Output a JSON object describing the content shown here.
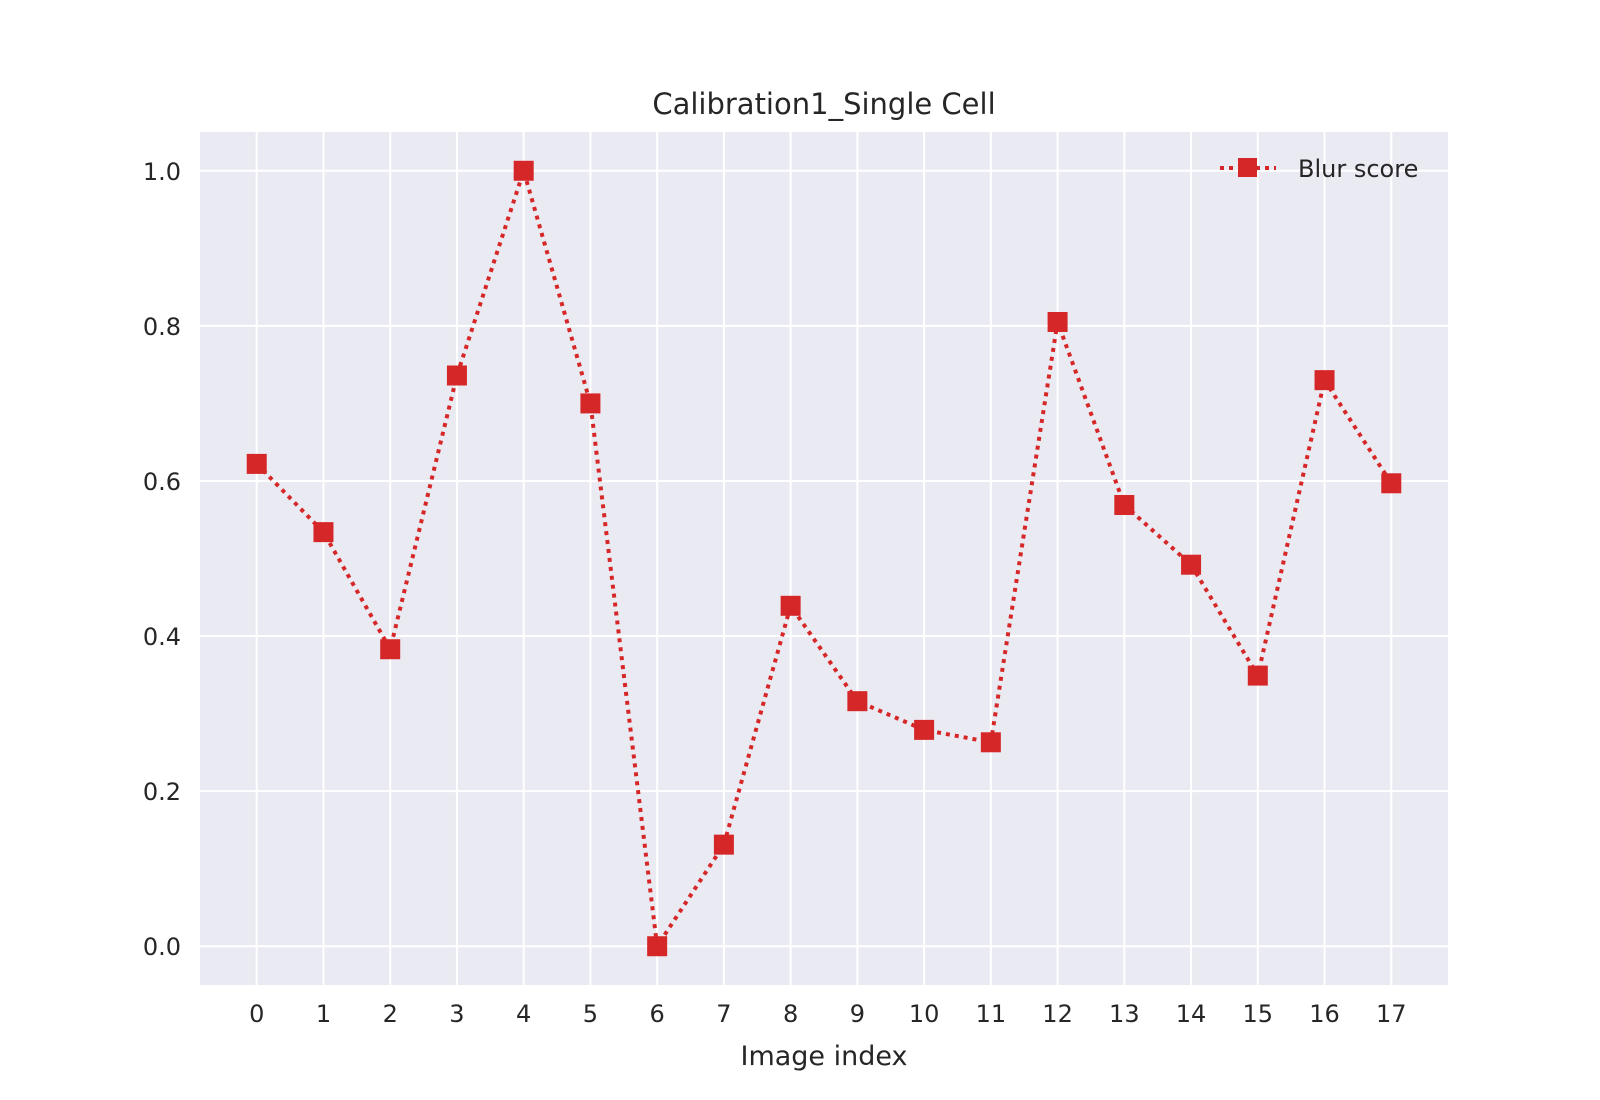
{
  "chart_data": {
    "type": "line",
    "title": "Calibration1_Single Cell",
    "xlabel": "Image index",
    "ylabel": "",
    "x": [
      0,
      1,
      2,
      3,
      4,
      5,
      6,
      7,
      8,
      9,
      10,
      11,
      12,
      13,
      14,
      15,
      16,
      17
    ],
    "x_ticks": [
      "0",
      "1",
      "2",
      "3",
      "4",
      "5",
      "6",
      "7",
      "8",
      "9",
      "10",
      "11",
      "12",
      "13",
      "14",
      "15",
      "16",
      "17"
    ],
    "y_ticks": [
      "0.0",
      "0.2",
      "0.4",
      "0.6",
      "0.8",
      "1.0"
    ],
    "xlim": [
      -0.85,
      17.85
    ],
    "ylim": [
      -0.05,
      1.05
    ],
    "grid": true,
    "legend_position": "top-right",
    "series": [
      {
        "name": "Blur score",
        "color": "#d62728",
        "marker": "square",
        "line_style": "dotted",
        "values": [
          0.622,
          0.534,
          0.383,
          0.736,
          1.0,
          0.7,
          0.0,
          0.131,
          0.439,
          0.316,
          0.279,
          0.263,
          0.805,
          0.569,
          0.492,
          0.349,
          0.73,
          0.597
        ]
      }
    ]
  }
}
